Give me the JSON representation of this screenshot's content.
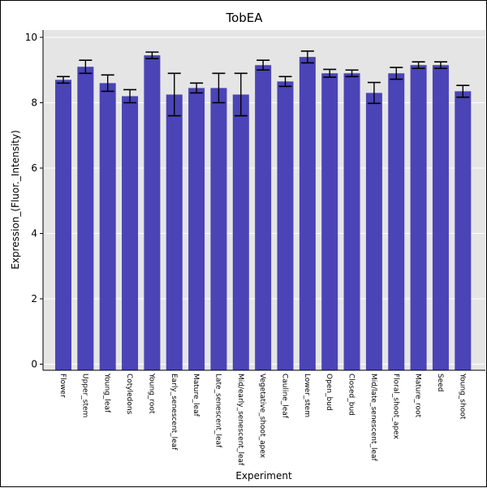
{
  "chart_data": {
    "type": "bar",
    "title": "TobEA",
    "xlabel": "Experiment",
    "ylabel": "Expression_(Fluor._Intensity)",
    "ylim": [
      0,
      10
    ],
    "yticks": [
      0,
      2,
      4,
      6,
      8,
      10
    ],
    "grid": true,
    "categories": [
      "Flower",
      "Upper_stem",
      "Young_leaf",
      "Cotyledons",
      "Young_root",
      "Early_senescent_leaf",
      "Mature_leaf",
      "Late_senescent_leaf",
      "Mid/early_senescent_leaf",
      "Vegetative_shoot_apex",
      "Cauline_leaf",
      "Lower_stem",
      "Open_bud",
      "Closed_bud",
      "Mid/late_senescent_leaf",
      "Floral_shoot_apex",
      "Mature_root",
      "Seed",
      "Young_shoot"
    ],
    "values": [
      8.7,
      9.1,
      8.6,
      8.2,
      9.45,
      8.25,
      8.45,
      8.45,
      8.25,
      9.15,
      8.65,
      9.4,
      8.9,
      8.9,
      8.3,
      8.9,
      9.15,
      9.15,
      8.35
    ],
    "error": [
      0.1,
      0.2,
      0.25,
      0.2,
      0.1,
      0.65,
      0.15,
      0.45,
      0.65,
      0.15,
      0.15,
      0.18,
      0.12,
      0.1,
      0.32,
      0.18,
      0.1,
      0.1,
      0.18
    ],
    "colors": {
      "bar": "#4a44b6",
      "plot_background": "#e5e5e5",
      "grid": "#ffffff",
      "error_bar": "#000000"
    }
  }
}
